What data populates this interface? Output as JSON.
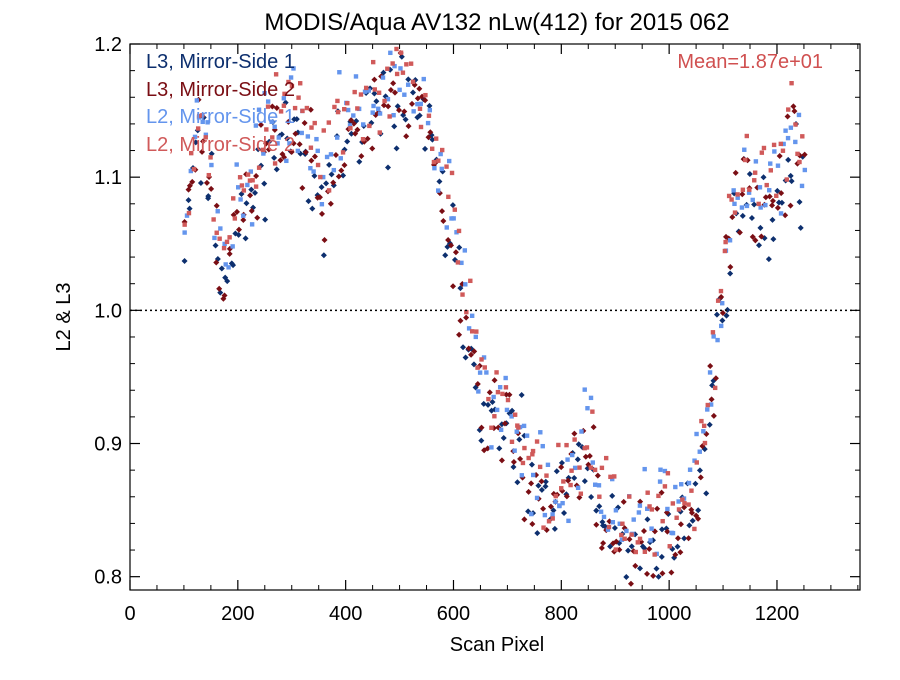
{
  "chart_data": {
    "type": "scatter",
    "title": "MODIS/Aqua AV132 nLw(412) for 2015 062",
    "xlabel": "Scan Pixel",
    "ylabel": "L2 & L3",
    "xlim": [
      0,
      1354
    ],
    "ylim": [
      0.79,
      1.2
    ],
    "x_ticks": [
      0,
      200,
      400,
      600,
      800,
      1000,
      1200
    ],
    "x_tick_labels": [
      "0",
      "200",
      "400",
      "600",
      "800",
      "1000",
      "1200"
    ],
    "y_ticks": [
      0.8,
      0.9,
      1.0,
      1.1,
      1.2
    ],
    "y_tick_labels": [
      "0.8",
      "0.9",
      "1.0",
      "1.1",
      "1.2"
    ],
    "reference_line": 1.0,
    "annotation": "Mean=1.87e+01",
    "annotation_color": "#d05050",
    "legend_position": "top-left",
    "trend_points": [
      [
        105,
        1.07
      ],
      [
        125,
        1.14
      ],
      [
        150,
        1.09
      ],
      [
        170,
        1.03
      ],
      [
        190,
        1.05
      ],
      [
        220,
        1.08
      ],
      [
        250,
        1.12
      ],
      [
        300,
        1.14
      ],
      [
        330,
        1.12
      ],
      [
        360,
        1.09
      ],
      [
        390,
        1.12
      ],
      [
        420,
        1.14
      ],
      [
        460,
        1.15
      ],
      [
        500,
        1.16
      ],
      [
        530,
        1.17
      ],
      [
        560,
        1.12
      ],
      [
        590,
        1.07
      ],
      [
        620,
        1.0
      ],
      [
        640,
        0.96
      ],
      [
        660,
        0.92
      ],
      [
        690,
        0.91
      ],
      [
        720,
        0.9
      ],
      [
        750,
        0.86
      ],
      [
        780,
        0.85
      ],
      [
        800,
        0.86
      ],
      [
        830,
        0.88
      ],
      [
        850,
        0.9
      ],
      [
        870,
        0.85
      ],
      [
        900,
        0.83
      ],
      [
        940,
        0.82
      ],
      [
        980,
        0.83
      ],
      [
        1020,
        0.84
      ],
      [
        1050,
        0.86
      ],
      [
        1070,
        0.9
      ],
      [
        1090,
        0.98
      ],
      [
        1110,
        1.05
      ],
      [
        1140,
        1.09
      ],
      [
        1170,
        1.07
      ],
      [
        1200,
        1.09
      ],
      [
        1230,
        1.12
      ],
      [
        1250,
        1.1
      ]
    ],
    "series": [
      {
        "name": "L3, Mirror-Side 1",
        "color": "#0d2f6e",
        "marker": "diamond",
        "offset": -0.005,
        "seed": 11,
        "count": 230
      },
      {
        "name": "L3, Mirror-Side 2",
        "color": "#7a0e14",
        "marker": "diamond",
        "offset": -0.002,
        "seed": 23,
        "count": 230
      },
      {
        "name": "L2, Mirror-Side 1",
        "color": "#6495ed",
        "marker": "square",
        "offset": 0.012,
        "seed": 37,
        "count": 210
      },
      {
        "name": "L2, Mirror-Side 2",
        "color": "#d05a5a",
        "marker": "square",
        "offset": 0.018,
        "seed": 53,
        "count": 210
      }
    ]
  }
}
